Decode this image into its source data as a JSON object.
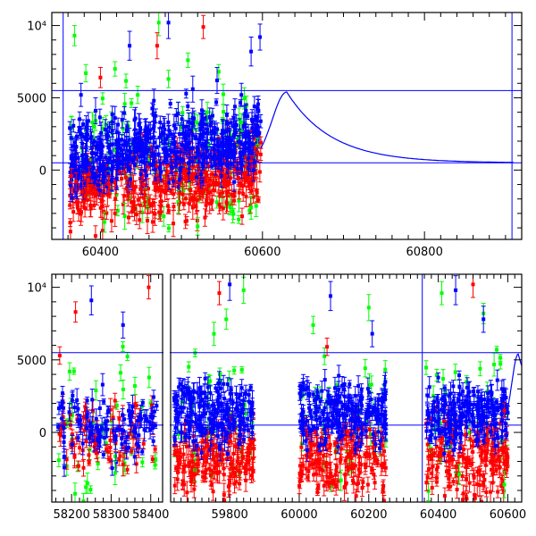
{
  "chart_data": [
    {
      "type": "scatter",
      "panel": "top",
      "title": "",
      "xlabel": "",
      "ylabel": "",
      "xlim": [
        60340,
        60920
      ],
      "ylim": [
        -4800,
        10900
      ],
      "x_ticks": [
        {
          "value": 60400,
          "label": "60400"
        },
        {
          "value": 60600,
          "label": "60600"
        },
        {
          "value": 60800,
          "label": "60800"
        }
      ],
      "y_ticks": [
        {
          "value": 0,
          "label": "0"
        },
        {
          "value": 5000,
          "label": "5000"
        },
        {
          "value": 10000,
          "label": "10⁴"
        }
      ],
      "series": [
        {
          "color": "#00ff00",
          "points": [
            [
              60368,
              9300,
              700
            ],
            [
              60382,
              6700,
              600
            ],
            [
              60392,
              3000,
              800
            ],
            [
              60405,
              -3600,
              700
            ],
            [
              60418,
              7000,
              500
            ],
            [
              60430,
              -3200,
              900
            ],
            [
              60446,
              5200,
              600
            ],
            [
              60458,
              -2600,
              700
            ],
            [
              60472,
              10200,
              900
            ],
            [
              60484,
              6300,
              600
            ],
            [
              60496,
              -2200,
              800
            ],
            [
              60508,
              7600,
              500
            ],
            [
              60520,
              -3900,
              600
            ],
            [
              60532,
              4000,
              700
            ],
            [
              60546,
              6800,
              500
            ],
            [
              60560,
              -2400,
              700
            ],
            [
              60574,
              3300,
              600
            ],
            [
              60586,
              -2600,
              800
            ],
            [
              60594,
              1700,
              500
            ]
          ]
        },
        {
          "color": "#ff0000",
          "points": [
            [
              60364,
              -400,
              500
            ],
            [
              60370,
              -800,
              600
            ],
            [
              60378,
              -1500,
              700
            ],
            [
              60386,
              -300,
              500
            ],
            [
              60394,
              -1800,
              600
            ],
            [
              60402,
              -2500,
              800
            ],
            [
              60410,
              -1000,
              600
            ],
            [
              60418,
              -3000,
              900
            ],
            [
              60426,
              -600,
              500
            ],
            [
              60434,
              -1800,
              700
            ],
            [
              60442,
              -2700,
              800
            ],
            [
              60450,
              -1300,
              600
            ],
            [
              60458,
              -3500,
              900
            ],
            [
              60466,
              -900,
              500
            ],
            [
              60474,
              -2200,
              700
            ],
            [
              60482,
              -1100,
              600
            ],
            [
              60490,
              -3700,
              900
            ],
            [
              60498,
              -1600,
              700
            ],
            [
              60506,
              -600,
              500
            ],
            [
              60514,
              -2600,
              800
            ],
            [
              60522,
              -1400,
              600
            ],
            [
              60530,
              -800,
              500
            ],
            [
              60538,
              -2100,
              700
            ],
            [
              60546,
              -1000,
              600
            ],
            [
              60554,
              -400,
              500
            ],
            [
              60562,
              -1700,
              700
            ],
            [
              60570,
              -600,
              500
            ],
            [
              60578,
              -200,
              400
            ],
            [
              60586,
              600,
              400
            ],
            [
              60594,
              1200,
              500
            ],
            [
              60598,
              1900,
              400
            ],
            [
              60400,
              6400,
              700
            ],
            [
              60470,
              8600,
              900
            ],
            [
              60527,
              9900,
              800
            ]
          ]
        },
        {
          "color": "#0000ff",
          "points": [
            [
              60364,
              800,
              600
            ],
            [
              60370,
              1600,
              700
            ],
            [
              60376,
              5200,
              800
            ],
            [
              60382,
              300,
              500
            ],
            [
              60388,
              2200,
              600
            ],
            [
              60394,
              4100,
              900
            ],
            [
              60400,
              900,
              500
            ],
            [
              60406,
              2800,
              700
            ],
            [
              60412,
              1200,
              600
            ],
            [
              60418,
              3600,
              800
            ],
            [
              60424,
              600,
              500
            ],
            [
              60430,
              2000,
              600
            ],
            [
              60436,
              8600,
              1000
            ],
            [
              60442,
              1400,
              600
            ],
            [
              60448,
              3200,
              700
            ],
            [
              60454,
              500,
              500
            ],
            [
              60460,
              2600,
              700
            ],
            [
              60466,
              4800,
              800
            ],
            [
              60472,
              1100,
              600
            ],
            [
              60478,
              3000,
              700
            ],
            [
              60484,
              10200,
              1100
            ],
            [
              60490,
              1800,
              600
            ],
            [
              60496,
              3900,
              800
            ],
            [
              60502,
              700,
              500
            ],
            [
              60508,
              2400,
              600
            ],
            [
              60514,
              5600,
              900
            ],
            [
              60520,
              1500,
              600
            ],
            [
              60526,
              3400,
              700
            ],
            [
              60532,
              900,
              500
            ],
            [
              60538,
              2700,
              700
            ],
            [
              60544,
              6200,
              900
            ],
            [
              60550,
              1900,
              600
            ],
            [
              60556,
              3800,
              700
            ],
            [
              60562,
              1300,
              500
            ],
            [
              60568,
              3100,
              700
            ],
            [
              60574,
              5200,
              800
            ],
            [
              60580,
              2400,
              600
            ],
            [
              60586,
              8200,
              1000
            ],
            [
              60592,
              3700,
              700
            ],
            [
              60597,
              9200,
              900
            ]
          ]
        }
      ],
      "model_curve": {
        "color": "#0000ff",
        "baseline": 500,
        "peak_x": 60630,
        "peak_y": 5400,
        "x_range": [
          60598,
          60910
        ],
        "description": "rise to peak then slow decline to baseline"
      },
      "reference_lines": [
        {
          "orientation": "horizontal",
          "value": 5500
        },
        {
          "orientation": "horizontal",
          "value": 500
        },
        {
          "orientation": "vertical",
          "value": 60354
        },
        {
          "orientation": "vertical",
          "value": 60908
        }
      ]
    },
    {
      "type": "scatter",
      "panel": "bottom",
      "title": "",
      "xlabel": "",
      "ylabel": "",
      "broken_axis": true,
      "segments": [
        {
          "xlim": [
            58150,
            58430
          ],
          "ticks": [
            {
              "value": 58200,
              "label": "58200"
            },
            {
              "value": 58300,
              "label": "58300"
            },
            {
              "value": 58400,
              "label": "58400"
            }
          ]
        },
        {
          "xlim": [
            59630,
            60640
          ],
          "ticks": [
            {
              "value": 59800,
              "label": "59800"
            },
            {
              "value": 60000,
              "label": "60000"
            },
            {
              "value": 60200,
              "label": "60200"
            },
            {
              "value": 60400,
              "label": "60400"
            },
            {
              "value": 60600,
              "label": "60600"
            }
          ]
        }
      ],
      "ylim": [
        -4800,
        10900
      ],
      "y_ticks": [
        {
          "value": 0,
          "label": "0"
        },
        {
          "value": 5000,
          "label": "5000"
        },
        {
          "value": 10000,
          "label": "10⁴"
        }
      ],
      "seasons": [
        {
          "x_range": [
            58165,
            58415
          ]
        },
        {
          "x_range": [
            59640,
            59870
          ]
        },
        {
          "x_range": [
            60000,
            60250
          ]
        },
        {
          "x_range": [
            60365,
            60600
          ]
        }
      ],
      "series": [
        {
          "color": "#00ff00",
          "points": [
            [
              58195,
              4200,
              600
            ],
            [
              58240,
              -3500,
              700
            ],
            [
              58310,
              -2800,
              800
            ],
            [
              58360,
              3200,
              600
            ],
            [
              59700,
              -2600,
              800
            ],
            [
              59790,
              7800,
              700
            ],
            [
              59840,
              9800,
              900
            ],
            [
              60040,
              7400,
              600
            ],
            [
              60120,
              -3300,
              700
            ],
            [
              60200,
              8600,
              900
            ],
            [
              60410,
              9600,
              800
            ],
            [
              60460,
              -2900,
              700
            ],
            [
              60530,
              8200,
              700
            ],
            [
              60590,
              -3600,
              900
            ]
          ]
        },
        {
          "color": "#ff0000",
          "points": [
            [
              58170,
              5300,
              600
            ],
            [
              58210,
              8300,
              700
            ],
            [
              58260,
              -800,
              600
            ],
            [
              58330,
              -2200,
              800
            ],
            [
              58395,
              10000,
              800
            ],
            [
              59660,
              -1700,
              600
            ],
            [
              59700,
              -2900,
              800
            ],
            [
              59750,
              -1200,
              600
            ],
            [
              59800,
              -3400,
              900
            ],
            [
              59850,
              -2100,
              700
            ],
            [
              59770,
              9600,
              800
            ],
            [
              60020,
              -2500,
              700
            ],
            [
              60070,
              -1600,
              600
            ],
            [
              60130,
              -3800,
              900
            ],
            [
              60190,
              -2200,
              700
            ],
            [
              60240,
              -900,
              600
            ],
            [
              60080,
              5900,
              600
            ],
            [
              60380,
              -1800,
              700
            ],
            [
              60430,
              -3200,
              800
            ],
            [
              60480,
              -2400,
              700
            ],
            [
              60540,
              -1400,
              600
            ],
            [
              60590,
              1500,
              500
            ],
            [
              60500,
              10200,
              900
            ]
          ]
        },
        {
          "color": "#0000ff",
          "points": [
            [
              58180,
              300,
              500
            ],
            [
              58220,
              600,
              600
            ],
            [
              58250,
              9100,
              1000
            ],
            [
              58290,
              200,
              500
            ],
            [
              58330,
              7400,
              900
            ],
            [
              58370,
              -200,
              500
            ],
            [
              58405,
              300,
              400
            ],
            [
              59650,
              700,
              600
            ],
            [
              59690,
              2100,
              700
            ],
            [
              59730,
              1300,
              600
            ],
            [
              59770,
              3400,
              800
            ],
            [
              59800,
              10200,
              1100
            ],
            [
              59830,
              2600,
              700
            ],
            [
              59860,
              1400,
              600
            ],
            [
              60010,
              800,
              600
            ],
            [
              60050,
              2300,
              700
            ],
            [
              60090,
              9400,
              1000
            ],
            [
              60130,
              1900,
              600
            ],
            [
              60170,
              3200,
              700
            ],
            [
              60210,
              6800,
              900
            ],
            [
              60240,
              2100,
              600
            ],
            [
              60370,
              600,
              600
            ],
            [
              60410,
              2300,
              700
            ],
            [
              60450,
              9800,
              1000
            ],
            [
              60490,
              2800,
              700
            ],
            [
              60530,
              7800,
              900
            ],
            [
              60570,
              3600,
              700
            ],
            [
              60595,
              2400,
              600
            ]
          ]
        }
      ],
      "model_curve": {
        "color": "#0000ff",
        "baseline": 500,
        "peak_x": 60630,
        "peak_y": 5400,
        "x_range": [
          60598,
          60640
        ]
      },
      "reference_lines": [
        {
          "orientation": "horizontal",
          "value": 5500
        },
        {
          "orientation": "horizontal",
          "value": 500
        },
        {
          "orientation": "vertical",
          "value": 60354
        }
      ]
    }
  ]
}
